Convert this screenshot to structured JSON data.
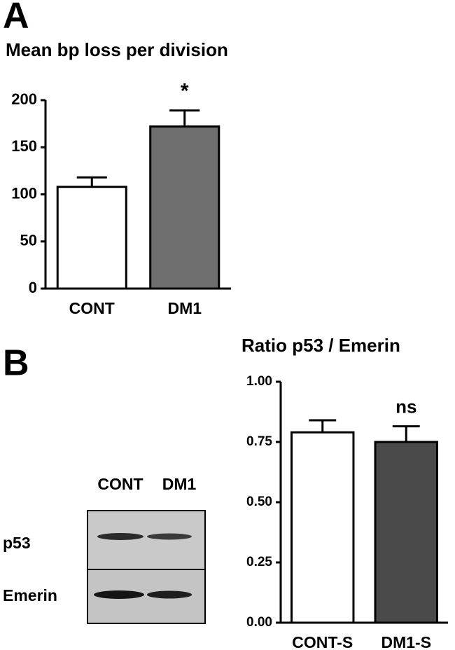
{
  "panels": [
    "A",
    "B"
  ],
  "blot": {
    "lanes": [
      "CONT",
      "DM1"
    ],
    "rows": [
      "p53",
      "Emerin"
    ]
  },
  "chart_data": [
    {
      "type": "bar",
      "title": "Mean bp loss per division",
      "categories": [
        "CONT",
        "DM1"
      ],
      "values": [
        108,
        172
      ],
      "errors": [
        10,
        17
      ],
      "colors": [
        "#ffffff",
        "#6e6e6e"
      ],
      "annotations": [
        null,
        "*"
      ],
      "ylim": [
        0,
        200
      ],
      "yticks": [
        0,
        50,
        100,
        150,
        200
      ]
    },
    {
      "type": "bar",
      "title": "Ratio p53 / Emerin",
      "categories": [
        "CONT-S",
        "DM1-S"
      ],
      "values": [
        0.79,
        0.75
      ],
      "errors": [
        0.05,
        0.065
      ],
      "colors": [
        "#ffffff",
        "#4a4a4a"
      ],
      "annotations": [
        null,
        "ns"
      ],
      "ylim": [
        0,
        1
      ],
      "yticks": [
        {
          "value": 0,
          "label": "0.00"
        },
        {
          "value": 0.25,
          "label": "0.25"
        },
        {
          "value": 0.5,
          "label": "0.50"
        },
        {
          "value": 0.75,
          "label": "0.75"
        },
        {
          "value": 1,
          "label": "1.00"
        }
      ]
    }
  ]
}
